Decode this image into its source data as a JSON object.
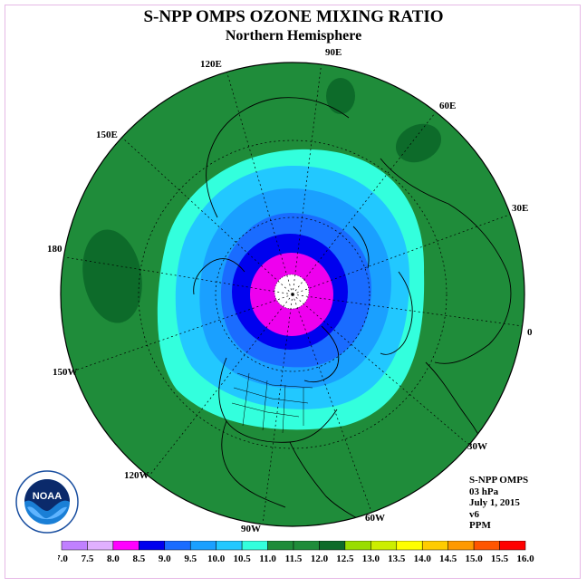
{
  "header": {
    "title": "S-NPP OMPS OZONE MIXING RATIO",
    "subtitle": "Northern Hemisphere"
  },
  "map": {
    "projection": "north-polar-stereographic",
    "longitude_labels": [
      "90E",
      "60E",
      "30E",
      "0",
      "30W",
      "60W",
      "90W",
      "120W",
      "150W",
      "180",
      "150E",
      "120E"
    ],
    "contour_colors": [
      "#33ffdd",
      "#22c8ff",
      "#1aa0ff",
      "#1a6cff",
      "#0000ee",
      "#ee00ee",
      "#ffffff"
    ],
    "background_field_color": "#1f8c3a",
    "high_region_color": "#0d6b2a"
  },
  "info": {
    "lines": [
      "S-NPP OMPS",
      "03 hPa",
      "July 1, 2015",
      "v6",
      "PPM"
    ]
  },
  "logo": {
    "text": "NOAA",
    "icon": "noaa-logo-icon"
  },
  "colorbar": {
    "ticks": [
      "7.0",
      "7.5",
      "8.0",
      "8.5",
      "9.0",
      "9.5",
      "10.0",
      "10.5",
      "11.0",
      "11.5",
      "12.0",
      "12.5",
      "13.0",
      "13.5",
      "14.0",
      "14.5",
      "15.0",
      "15.5",
      "16.0"
    ],
    "colors": [
      "#c080ff",
      "#e0b0ff",
      "#ff00ff",
      "#0000ee",
      "#1a6cff",
      "#1aa0ff",
      "#22c8ff",
      "#33ffdd",
      "#1f8c3a",
      "#1f8c3a",
      "#0d6b2a",
      "#99dd00",
      "#ccee00",
      "#ffff00",
      "#ffcc00",
      "#ff9900",
      "#ff5500",
      "#ff0000",
      "#8b5a2b"
    ]
  }
}
